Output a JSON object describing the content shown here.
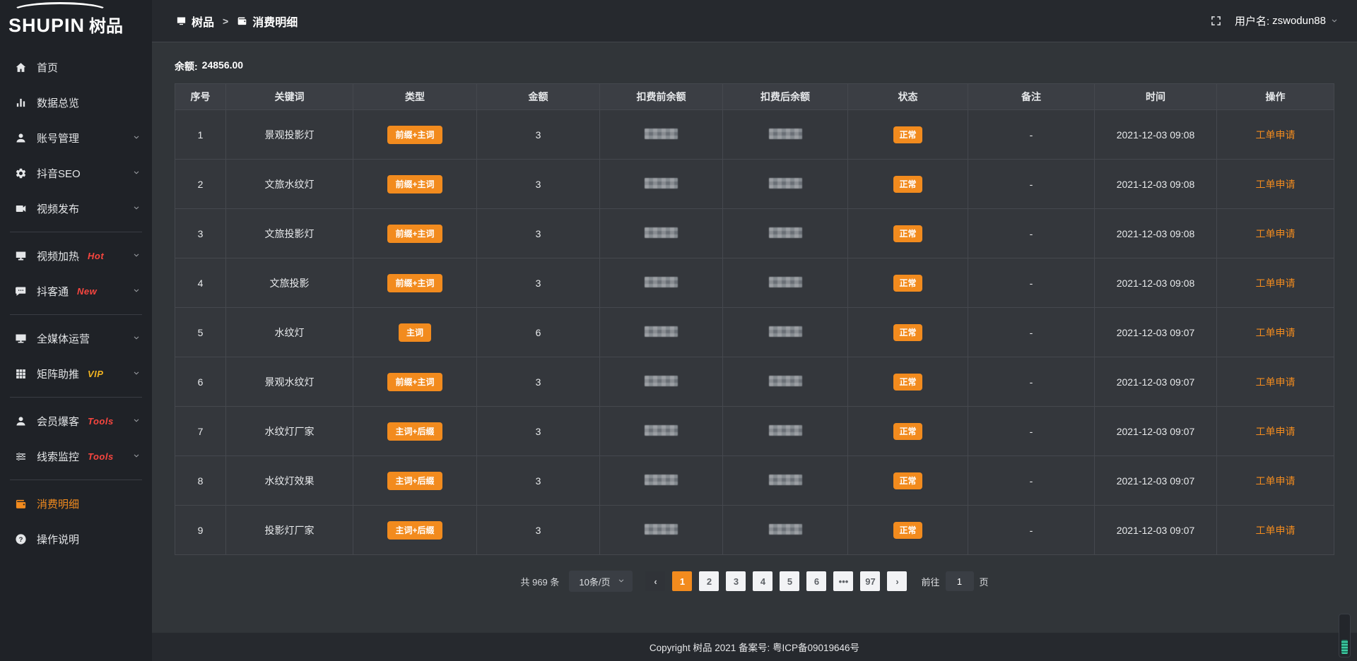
{
  "brand": {
    "logo_en": "SHUPIN",
    "logo_cn": "树品"
  },
  "topbar": {
    "breadcrumb": [
      {
        "icon": "screen",
        "label": "树品"
      },
      {
        "icon": "wallet",
        "label": "消费明细"
      }
    ],
    "separator": ">",
    "user_label": "用户名:",
    "username": "zswodun88"
  },
  "sidebar": {
    "groups": [
      {
        "items": [
          {
            "icon": "home",
            "label": "首页"
          },
          {
            "icon": "chart",
            "label": "数据总览"
          },
          {
            "icon": "user",
            "label": "账号管理",
            "expand": true
          },
          {
            "icon": "gear",
            "label": "抖音SEO",
            "expand": true
          },
          {
            "icon": "video",
            "label": "视频发布",
            "expand": true
          }
        ]
      },
      {
        "items": [
          {
            "icon": "tv",
            "label": "视频加热",
            "tag": "Hot",
            "tag_color": "red",
            "expand": true
          },
          {
            "icon": "chat",
            "label": "抖客通",
            "tag": "New",
            "tag_color": "red",
            "expand": true
          }
        ]
      },
      {
        "items": [
          {
            "icon": "monitor",
            "label": "全媒体运营",
            "expand": true
          },
          {
            "icon": "grid",
            "label": "矩阵助推",
            "tag": "VIP",
            "tag_color": "yellow",
            "expand": true
          }
        ]
      },
      {
        "items": [
          {
            "icon": "user",
            "label": "会员爆客",
            "tag": "Tools",
            "tag_color": "red",
            "expand": true
          },
          {
            "icon": "sliders",
            "label": "线索监控",
            "tag": "Tools",
            "tag_color": "red",
            "expand": true
          }
        ]
      },
      {
        "items": [
          {
            "icon": "wallet",
            "label": "消费明细",
            "active": true
          },
          {
            "icon": "question",
            "label": "操作说明"
          }
        ]
      }
    ]
  },
  "balance": {
    "label": "余额:",
    "value": "24856.00"
  },
  "table": {
    "columns": [
      "序号",
      "关键词",
      "类型",
      "金额",
      "扣费前余额",
      "扣费后余额",
      "状态",
      "备注",
      "时间",
      "操作"
    ],
    "rows": [
      {
        "index": "1",
        "keyword": "景观投影灯",
        "type": "前缀+主词",
        "amount": "3",
        "status": "正常",
        "note": "-",
        "time": "2021-12-03 09:08",
        "action": "工单申请"
      },
      {
        "index": "2",
        "keyword": "文旅水纹灯",
        "type": "前缀+主词",
        "amount": "3",
        "status": "正常",
        "note": "-",
        "time": "2021-12-03 09:08",
        "action": "工单申请"
      },
      {
        "index": "3",
        "keyword": "文旅投影灯",
        "type": "前缀+主词",
        "amount": "3",
        "status": "正常",
        "note": "-",
        "time": "2021-12-03 09:08",
        "action": "工单申请"
      },
      {
        "index": "4",
        "keyword": "文旅投影",
        "type": "前缀+主词",
        "amount": "3",
        "status": "正常",
        "note": "-",
        "time": "2021-12-03 09:08",
        "action": "工单申请"
      },
      {
        "index": "5",
        "keyword": "水纹灯",
        "type": "主词",
        "amount": "6",
        "status": "正常",
        "note": "-",
        "time": "2021-12-03 09:07",
        "action": "工单申请"
      },
      {
        "index": "6",
        "keyword": "景观水纹灯",
        "type": "前缀+主词",
        "amount": "3",
        "status": "正常",
        "note": "-",
        "time": "2021-12-03 09:07",
        "action": "工单申请"
      },
      {
        "index": "7",
        "keyword": "水纹灯厂家",
        "type": "主词+后缀",
        "amount": "3",
        "status": "正常",
        "note": "-",
        "time": "2021-12-03 09:07",
        "action": "工单申请"
      },
      {
        "index": "8",
        "keyword": "水纹灯效果",
        "type": "主词+后缀",
        "amount": "3",
        "status": "正常",
        "note": "-",
        "time": "2021-12-03 09:07",
        "action": "工单申请"
      },
      {
        "index": "9",
        "keyword": "投影灯厂家",
        "type": "主词+后缀",
        "amount": "3",
        "status": "正常",
        "note": "-",
        "time": "2021-12-03 09:07",
        "action": "工单申请"
      }
    ]
  },
  "pagination": {
    "total": "共 969 条",
    "page_size": "10条/页",
    "prev": "‹",
    "next": "›",
    "pages": [
      "1",
      "2",
      "3",
      "4",
      "5",
      "6",
      "•••",
      "97"
    ],
    "active": "1",
    "goto_label": "前往",
    "goto_value": "1",
    "goto_unit": "页"
  },
  "footer": {
    "copyright": "Copyright 树品 2021 备案号: 粤ICP备09019646号"
  },
  "colors": {
    "accent": "#f28b1e",
    "tag_red": "#f8463f",
    "tag_yellow": "#f0b321",
    "status_badge": "#f28b1e"
  }
}
